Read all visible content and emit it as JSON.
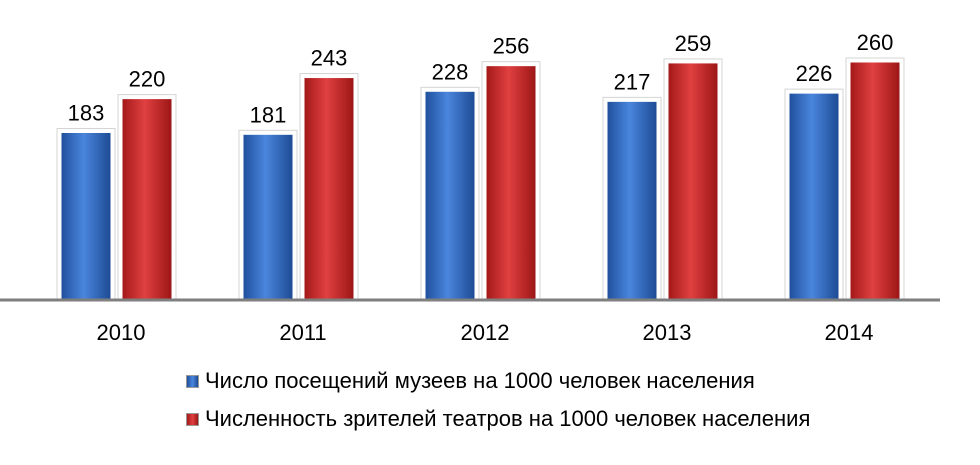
{
  "chart_data": {
    "type": "bar",
    "categories": [
      "2010",
      "2011",
      "2012",
      "2013",
      "2014"
    ],
    "series": [
      {
        "name": "Число посещений музеев на 1000 человек населения",
        "values": [
          183,
          181,
          228,
          217,
          226
        ],
        "color": "#2f6fc9"
      },
      {
        "name": "Численность зрителей театров на 1000 человек населения",
        "values": [
          220,
          243,
          256,
          259,
          260
        ],
        "color": "#d42a2a"
      }
    ],
    "title": "",
    "xlabel": "",
    "ylabel": "",
    "ylim": [
      0,
      260
    ],
    "grid": false,
    "legend": "bottom"
  }
}
